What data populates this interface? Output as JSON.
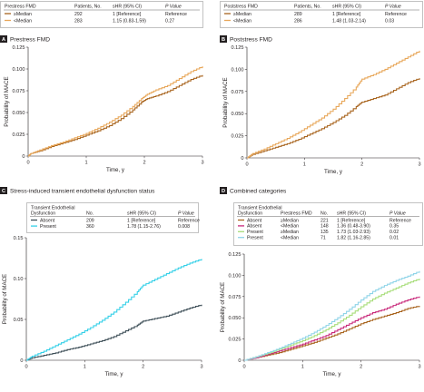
{
  "colors": {
    "dark_orange": "#a8641e",
    "light_orange": "#e8a75a",
    "dark_gray": "#3d4e57",
    "cyan": "#35d0e8",
    "magenta": "#c8287a",
    "light_green": "#a8dd7a",
    "light_blue": "#8fd4e8",
    "table_border": "#9a9a9a"
  },
  "chart_data": [
    {
      "id": "A",
      "type": "line",
      "letter": "A",
      "title": "Prestress FMD",
      "xlabel": "Time, y",
      "ylabel": "Probability of MACE",
      "xlim": [
        0,
        3
      ],
      "ylim": [
        0,
        0.125
      ],
      "xticks": [
        0,
        1,
        2,
        3
      ],
      "yticks": [
        0,
        0.025,
        0.05,
        0.075,
        0.1,
        0.125
      ],
      "ytick_labels": [
        "0",
        "0.025",
        "0.050",
        "0.075",
        "0.100",
        "0.125"
      ],
      "table": {
        "headers": [
          "Prestress FMD",
          "Patients, No.",
          "sHR (95% CI)",
          "P Value"
        ],
        "rows": [
          {
            "swatch": "dark_orange",
            "label": "≥Median",
            "n": "292",
            "shr": "1 [Reference]",
            "p": "Reference"
          },
          {
            "swatch": "light_orange",
            "label": "<Median",
            "n": "283",
            "shr": "1.15 (0.83-1.59)",
            "p": "0.27"
          }
        ]
      },
      "series": [
        {
          "color": "dark_orange",
          "points": [
            [
              0,
              0
            ],
            [
              0.05,
              0.003
            ],
            [
              0.2,
              0.006
            ],
            [
              0.4,
              0.011
            ],
            [
              0.6,
              0.015
            ],
            [
              0.8,
              0.019
            ],
            [
              1.0,
              0.024
            ],
            [
              1.2,
              0.029
            ],
            [
              1.4,
              0.035
            ],
            [
              1.6,
              0.043
            ],
            [
              1.8,
              0.053
            ],
            [
              1.95,
              0.062
            ],
            [
              2.05,
              0.066
            ],
            [
              2.2,
              0.069
            ],
            [
              2.4,
              0.074
            ],
            [
              2.6,
              0.081
            ],
            [
              2.8,
              0.088
            ],
            [
              3.0,
              0.093
            ]
          ]
        },
        {
          "color": "light_orange",
          "points": [
            [
              0,
              0
            ],
            [
              0.05,
              0.003
            ],
            [
              0.2,
              0.007
            ],
            [
              0.4,
              0.012
            ],
            [
              0.6,
              0.016
            ],
            [
              0.8,
              0.021
            ],
            [
              1.0,
              0.026
            ],
            [
              1.2,
              0.032
            ],
            [
              1.4,
              0.039
            ],
            [
              1.6,
              0.047
            ],
            [
              1.8,
              0.057
            ],
            [
              1.95,
              0.066
            ],
            [
              2.05,
              0.071
            ],
            [
              2.2,
              0.076
            ],
            [
              2.4,
              0.081
            ],
            [
              2.6,
              0.089
            ],
            [
              2.8,
              0.097
            ],
            [
              3.0,
              0.103
            ]
          ]
        }
      ]
    },
    {
      "id": "B",
      "type": "line",
      "letter": "B",
      "title": "Poststress FMD",
      "xlabel": "Time, y",
      "ylabel": "Probability of MACE",
      "xlim": [
        0,
        3
      ],
      "ylim": [
        0,
        0.125
      ],
      "xticks": [
        0,
        1,
        2,
        3
      ],
      "yticks": [
        0,
        0.025,
        0.05,
        0.075,
        0.1,
        0.125
      ],
      "ytick_labels": [
        "0",
        "0.025",
        "0.050",
        "0.075",
        "0.100",
        "0.125"
      ],
      "table": {
        "headers": [
          "Poststress FMD",
          "Patients, No.",
          "sHR (95% CI)",
          "P Value"
        ],
        "rows": [
          {
            "swatch": "dark_orange",
            "label": "≥Median",
            "n": "289",
            "shr": "1 [Reference]",
            "p": "Reference"
          },
          {
            "swatch": "light_orange",
            "label": "<Median",
            "n": "286",
            "shr": "1.48 (1.03-2.14)",
            "p": "0.03"
          }
        ]
      },
      "series": [
        {
          "color": "dark_orange",
          "points": [
            [
              0,
              0
            ],
            [
              0.1,
              0.004
            ],
            [
              0.3,
              0.008
            ],
            [
              0.5,
              0.012
            ],
            [
              0.7,
              0.016
            ],
            [
              0.9,
              0.021
            ],
            [
              1.1,
              0.027
            ],
            [
              1.3,
              0.033
            ],
            [
              1.5,
              0.04
            ],
            [
              1.7,
              0.048
            ],
            [
              1.9,
              0.058
            ],
            [
              2.0,
              0.063
            ],
            [
              2.2,
              0.067
            ],
            [
              2.4,
              0.071
            ],
            [
              2.6,
              0.078
            ],
            [
              2.8,
              0.085
            ],
            [
              3.0,
              0.09
            ]
          ]
        },
        {
          "color": "light_orange",
          "points": [
            [
              0,
              0
            ],
            [
              0.1,
              0.005
            ],
            [
              0.3,
              0.01
            ],
            [
              0.5,
              0.016
            ],
            [
              0.7,
              0.022
            ],
            [
              0.9,
              0.029
            ],
            [
              1.1,
              0.037
            ],
            [
              1.3,
              0.045
            ],
            [
              1.5,
              0.055
            ],
            [
              1.7,
              0.067
            ],
            [
              1.9,
              0.08
            ],
            [
              2.0,
              0.089
            ],
            [
              2.2,
              0.094
            ],
            [
              2.4,
              0.1
            ],
            [
              2.6,
              0.107
            ],
            [
              2.8,
              0.114
            ],
            [
              3.0,
              0.121
            ]
          ]
        }
      ]
    },
    {
      "id": "C",
      "type": "line",
      "letter": "C",
      "title": "Stress-induced transient endothelial dysfunction status",
      "xlabel": "Time, y",
      "ylabel": "Probability of MACE",
      "xlim": [
        0,
        3
      ],
      "ylim": [
        0,
        0.15
      ],
      "xticks": [
        0,
        1,
        2,
        3
      ],
      "yticks": [
        0,
        0.05,
        0.1,
        0.15
      ],
      "ytick_labels": [
        "0",
        "0.05",
        "0.10",
        "0.15"
      ],
      "table": {
        "headers": [
          "Transient Endothelial Dysfunction",
          "No.",
          "sHR (95% CI)",
          "P Value"
        ],
        "rows": [
          {
            "swatch": "dark_gray",
            "label": "Absent",
            "n": "209",
            "shr": "1 [Reference]",
            "p": "Reference"
          },
          {
            "swatch": "cyan",
            "label": "Present",
            "n": "360",
            "shr": "1.78 (1.15-2.76)",
            "p": "0.008"
          }
        ]
      },
      "series": [
        {
          "color": "dark_gray",
          "points": [
            [
              0,
              0
            ],
            [
              0.1,
              0.003
            ],
            [
              0.3,
              0.006
            ],
            [
              0.5,
              0.009
            ],
            [
              0.7,
              0.013
            ],
            [
              0.9,
              0.016
            ],
            [
              1.1,
              0.02
            ],
            [
              1.3,
              0.024
            ],
            [
              1.5,
              0.029
            ],
            [
              1.7,
              0.036
            ],
            [
              1.9,
              0.043
            ],
            [
              2.0,
              0.048
            ],
            [
              2.2,
              0.051
            ],
            [
              2.4,
              0.054
            ],
            [
              2.6,
              0.059
            ],
            [
              2.8,
              0.064
            ],
            [
              3.0,
              0.068
            ]
          ]
        },
        {
          "color": "cyan",
          "points": [
            [
              0,
              0
            ],
            [
              0.1,
              0.005
            ],
            [
              0.3,
              0.011
            ],
            [
              0.5,
              0.018
            ],
            [
              0.7,
              0.025
            ],
            [
              0.9,
              0.032
            ],
            [
              1.1,
              0.04
            ],
            [
              1.3,
              0.049
            ],
            [
              1.5,
              0.059
            ],
            [
              1.7,
              0.071
            ],
            [
              1.9,
              0.084
            ],
            [
              2.0,
              0.092
            ],
            [
              2.2,
              0.099
            ],
            [
              2.4,
              0.106
            ],
            [
              2.6,
              0.113
            ],
            [
              2.8,
              0.119
            ],
            [
              3.0,
              0.124
            ]
          ]
        }
      ]
    },
    {
      "id": "D",
      "type": "line",
      "letter": "D",
      "title": "Combined categories",
      "xlabel": "Time, y",
      "ylabel": "Probability of MACE",
      "xlim": [
        0,
        3
      ],
      "ylim": [
        0,
        0.125
      ],
      "xticks": [
        0,
        1,
        2,
        3
      ],
      "yticks": [
        0,
        0.025,
        0.05,
        0.075,
        0.1,
        0.125
      ],
      "ytick_labels": [
        "0",
        "0.025",
        "0.050",
        "0.075",
        "0.100",
        "0.125"
      ],
      "table": {
        "headers": [
          "Transient Endothelial Dysfunction",
          "Prestress FMD",
          "No.",
          "sHR (95% CI)",
          "P Value"
        ],
        "rows": [
          {
            "swatch": "dark_orange",
            "label": "Absent",
            "fmd": "≥Median",
            "n": "221",
            "shr": "1 [Reference]",
            "p": "Reference"
          },
          {
            "swatch": "magenta",
            "label": "Absent",
            "fmd": "<Median",
            "n": "148",
            "shr": "1.36 (0.48-3.90)",
            "p": "0.35"
          },
          {
            "swatch": "light_green",
            "label": "Present",
            "fmd": "≥Median",
            "n": "135",
            "shr": "1.73 (1.03-2.93)",
            "p": "0.02"
          },
          {
            "swatch": "light_blue",
            "label": "Present",
            "fmd": "<Median",
            "n": "71",
            "shr": "1.82 (1.16-2.85)",
            "p": "0.01"
          }
        ]
      },
      "series": [
        {
          "color": "dark_orange",
          "points": [
            [
              0,
              0
            ],
            [
              0.2,
              0.003
            ],
            [
              0.4,
              0.006
            ],
            [
              0.6,
              0.009
            ],
            [
              0.8,
              0.013
            ],
            [
              1.0,
              0.017
            ],
            [
              1.2,
              0.021
            ],
            [
              1.4,
              0.026
            ],
            [
              1.6,
              0.031
            ],
            [
              1.8,
              0.037
            ],
            [
              2.0,
              0.043
            ],
            [
              2.2,
              0.048
            ],
            [
              2.4,
              0.052
            ],
            [
              2.6,
              0.056
            ],
            [
              2.8,
              0.061
            ],
            [
              3.0,
              0.064
            ]
          ]
        },
        {
          "color": "magenta",
          "points": [
            [
              0,
              0
            ],
            [
              0.2,
              0.003
            ],
            [
              0.4,
              0.007
            ],
            [
              0.6,
              0.011
            ],
            [
              0.8,
              0.015
            ],
            [
              1.0,
              0.019
            ],
            [
              1.2,
              0.024
            ],
            [
              1.4,
              0.029
            ],
            [
              1.6,
              0.036
            ],
            [
              1.8,
              0.043
            ],
            [
              2.0,
              0.05
            ],
            [
              2.2,
              0.056
            ],
            [
              2.4,
              0.06
            ],
            [
              2.6,
              0.066
            ],
            [
              2.8,
              0.071
            ],
            [
              3.0,
              0.075
            ]
          ]
        },
        {
          "color": "light_green",
          "points": [
            [
              0,
              0
            ],
            [
              0.2,
              0.004
            ],
            [
              0.4,
              0.008
            ],
            [
              0.6,
              0.013
            ],
            [
              0.8,
              0.018
            ],
            [
              1.0,
              0.023
            ],
            [
              1.2,
              0.029
            ],
            [
              1.4,
              0.036
            ],
            [
              1.6,
              0.044
            ],
            [
              1.8,
              0.053
            ],
            [
              2.0,
              0.063
            ],
            [
              2.2,
              0.072
            ],
            [
              2.4,
              0.079
            ],
            [
              2.6,
              0.085
            ],
            [
              2.8,
              0.091
            ],
            [
              3.0,
              0.096
            ]
          ]
        },
        {
          "color": "light_blue",
          "points": [
            [
              0,
              0
            ],
            [
              0.2,
              0.004
            ],
            [
              0.4,
              0.009
            ],
            [
              0.6,
              0.014
            ],
            [
              0.8,
              0.02
            ],
            [
              1.0,
              0.026
            ],
            [
              1.2,
              0.033
            ],
            [
              1.4,
              0.041
            ],
            [
              1.6,
              0.05
            ],
            [
              1.8,
              0.06
            ],
            [
              2.0,
              0.071
            ],
            [
              2.2,
              0.081
            ],
            [
              2.4,
              0.088
            ],
            [
              2.6,
              0.094
            ],
            [
              2.8,
              0.099
            ],
            [
              3.0,
              0.105
            ]
          ]
        }
      ]
    }
  ]
}
